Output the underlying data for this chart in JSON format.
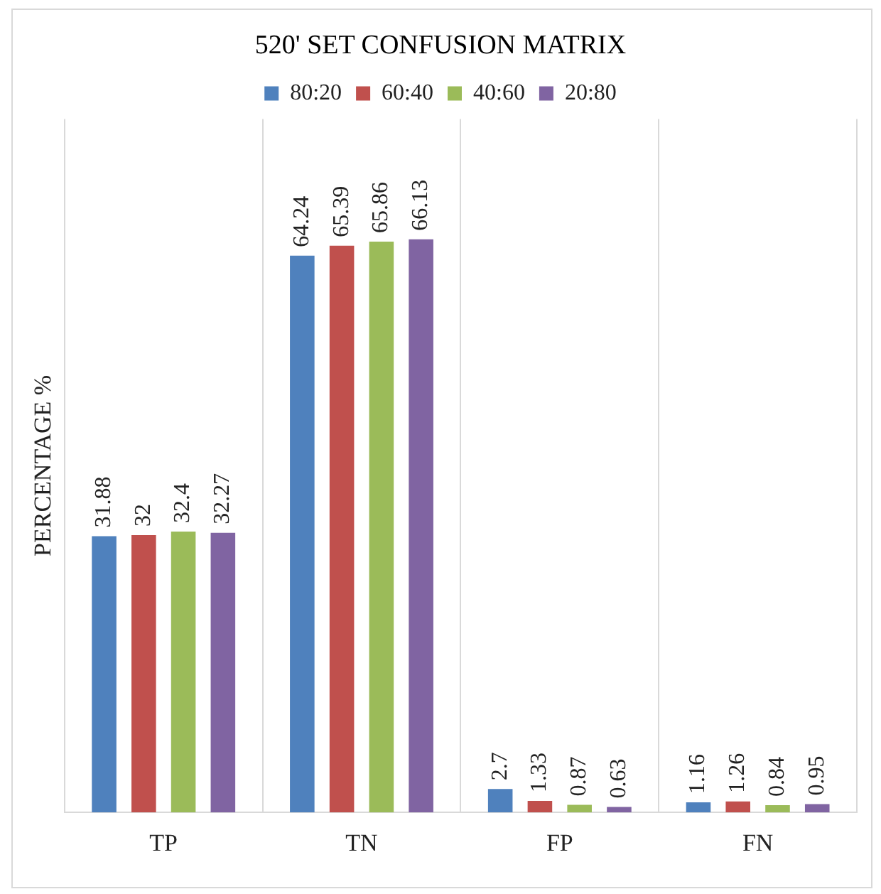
{
  "chart_data": {
    "type": "bar",
    "title": "520' SET CONFUSION MATRIX",
    "ylabel": "PERCENTAGE %",
    "categories": [
      "TP",
      "TN",
      "FP",
      "FN"
    ],
    "series": [
      {
        "name": "80:20",
        "color": "#4f81bd",
        "values": [
          31.88,
          64.24,
          2.7,
          1.16
        ]
      },
      {
        "name": "60:40",
        "color": "#c0504d",
        "values": [
          32,
          65.39,
          1.33,
          1.26
        ]
      },
      {
        "name": "40:60",
        "color": "#9bbb59",
        "values": [
          32.4,
          65.86,
          0.87,
          0.84
        ]
      },
      {
        "name": "20:80",
        "color": "#8064a2",
        "values": [
          32.27,
          66.13,
          0.63,
          0.95
        ]
      }
    ],
    "data_labels": true,
    "grid": "x",
    "legend": "top",
    "tick_labels": "x"
  }
}
